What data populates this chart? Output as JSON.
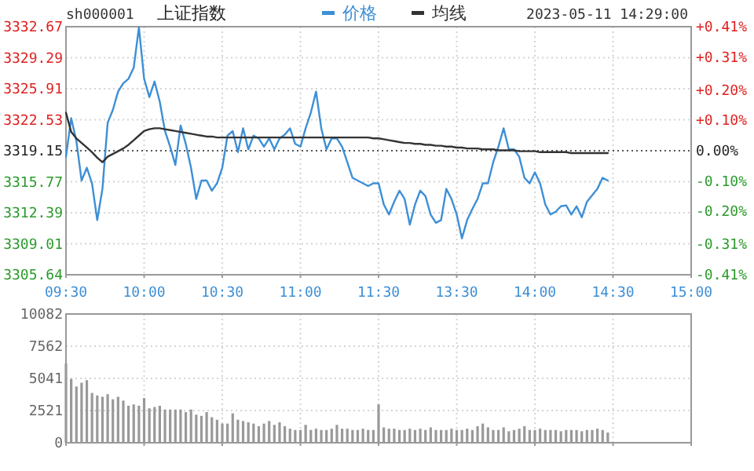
{
  "chart_data": [
    {
      "type": "line",
      "title": "上证指数",
      "annotations": [
        "sh000001",
        "2023-05-11 14:29:00"
      ],
      "legend": "top",
      "grid": true,
      "categories": [
        "09:30",
        null,
        null,
        null,
        null,
        null,
        null,
        null,
        null,
        null,
        null,
        null,
        null,
        null,
        null,
        "10:00",
        null,
        null,
        null,
        null,
        null,
        null,
        null,
        null,
        null,
        null,
        null,
        null,
        null,
        null,
        "10:30",
        null,
        null,
        null,
        null,
        null,
        null,
        null,
        null,
        null,
        null,
        null,
        null,
        null,
        null,
        "11:00",
        null,
        null,
        null,
        null,
        null,
        null,
        null,
        null,
        null,
        null,
        null,
        null,
        null,
        null,
        "11:30",
        null,
        null,
        null,
        null,
        null,
        null,
        null,
        null,
        null,
        null,
        null,
        null,
        null,
        null,
        "13:30",
        null,
        null,
        null,
        null,
        null,
        null,
        null,
        null,
        null,
        null,
        null,
        null,
        null,
        null,
        "14:00",
        null,
        null,
        null,
        null,
        null,
        null,
        null,
        null,
        null,
        null,
        null,
        null,
        null,
        null,
        "14:30",
        null,
        null,
        null,
        null,
        null,
        null,
        null,
        null,
        null,
        null,
        null,
        null,
        null,
        null,
        "15:00"
      ],
      "series": [
        {
          "name": "价格",
          "color": "#3d8fd6",
          "values": [
            3318.5,
            3322.7,
            3320.2,
            3315.9,
            3317.3,
            3315.6,
            3311.6,
            3315.0,
            3322.2,
            3323.6,
            3325.6,
            3326.5,
            3327.0,
            3328.2,
            3332.6,
            3327.0,
            3325.0,
            3326.7,
            3324.5,
            3321.3,
            3319.6,
            3317.6,
            3321.9,
            3319.9,
            3317.3,
            3313.9,
            3315.9,
            3315.9,
            3314.8,
            3315.6,
            3317.3,
            3320.8,
            3321.3,
            3319.0,
            3321.6,
            3319.3,
            3320.8,
            3320.5,
            3319.6,
            3320.5,
            3319.3,
            3320.5,
            3320.9,
            3321.6,
            3319.9,
            3319.6,
            3321.6,
            3323.3,
            3325.6,
            3321.6,
            3319.3,
            3320.5,
            3320.5,
            3319.6,
            3317.9,
            3316.2,
            3315.9,
            3315.6,
            3315.3,
            3315.6,
            3315.6,
            3313.3,
            3312.2,
            3313.6,
            3314.8,
            3313.9,
            3311.1,
            3313.3,
            3314.8,
            3314.2,
            3312.2,
            3311.3,
            3311.6,
            3315.0,
            3313.9,
            3312.2,
            3309.6,
            3311.6,
            3312.8,
            3313.9,
            3315.6,
            3315.6,
            3317.9,
            3319.6,
            3321.6,
            3319.3,
            3319.3,
            3318.5,
            3316.2,
            3315.6,
            3316.8,
            3315.6,
            3313.3,
            3312.2,
            3312.5,
            3313.1,
            3313.2,
            3312.2,
            3313.1,
            3311.9,
            3313.6,
            3314.3,
            3315.0,
            3316.2,
            3315.9,
            null,
            null,
            null,
            null,
            null,
            null,
            null,
            null,
            null,
            null,
            null,
            null,
            null,
            null,
            null,
            null
          ]
        },
        {
          "name": "均线",
          "color": "#333333",
          "values": [
            3323.3,
            3321.2,
            3320.5,
            3320.0,
            3319.5,
            3319.0,
            3318.4,
            3317.9,
            3318.5,
            3318.8,
            3319.1,
            3319.4,
            3319.8,
            3320.3,
            3320.8,
            3321.3,
            3321.5,
            3321.6,
            3321.6,
            3321.5,
            3321.4,
            3321.3,
            3321.2,
            3321.1,
            3321.0,
            3320.9,
            3320.8,
            3320.7,
            3320.7,
            3320.6,
            3320.6,
            3320.6,
            3320.6,
            3320.6,
            3320.6,
            3320.6,
            3320.6,
            3320.6,
            3320.6,
            3320.6,
            3320.6,
            3320.6,
            3320.6,
            3320.6,
            3320.6,
            3320.6,
            3320.6,
            3320.6,
            3320.6,
            3320.6,
            3320.6,
            3320.6,
            3320.6,
            3320.6,
            3320.6,
            3320.6,
            3320.6,
            3320.6,
            3320.6,
            3320.5,
            3320.5,
            3320.4,
            3320.3,
            3320.2,
            3320.1,
            3320.0,
            3320.0,
            3319.9,
            3319.9,
            3319.8,
            3319.8,
            3319.7,
            3319.7,
            3319.6,
            3319.6,
            3319.5,
            3319.5,
            3319.4,
            3319.4,
            3319.4,
            3319.3,
            3319.3,
            3319.3,
            3319.2,
            3319.2,
            3319.2,
            3319.2,
            3319.1,
            3319.1,
            3319.1,
            3319.1,
            3319.0,
            3319.0,
            3319.0,
            3319.0,
            3319.0,
            3319.0,
            3318.9,
            3318.9,
            3318.9,
            3318.9,
            3318.9,
            3318.9,
            3318.9,
            3318.9,
            null,
            null,
            null,
            null,
            null,
            null,
            null,
            null,
            null,
            null,
            null,
            null,
            null,
            null,
            null,
            null
          ]
        }
      ],
      "ylim": [
        3305.64,
        3332.67
      ],
      "yticks": [
        3305.64,
        3309.01,
        3312.39,
        3315.77,
        3319.15,
        3322.53,
        3325.91,
        3329.29,
        3332.67
      ],
      "y2lim": [
        -0.41,
        0.41
      ],
      "y2ticks": [
        {
          "value": -0.41,
          "label": "-0.41%"
        },
        {
          "value": -0.31,
          "label": "-0.31%"
        },
        {
          "value": -0.2,
          "label": "-0.20%"
        },
        {
          "value": -0.1,
          "label": "-0.10%"
        },
        {
          "value": 0,
          "label": "0.00%"
        },
        {
          "value": 0.1,
          "label": "+0.10%"
        },
        {
          "value": 0.2,
          "label": "+0.20%"
        },
        {
          "value": 0.31,
          "label": "+0.31%"
        },
        {
          "value": 0.41,
          "label": "+0.41%"
        }
      ],
      "ref_lines": [
        {
          "axis": "y",
          "value": 3319.15,
          "color": "#555555",
          "line_style": "dotted"
        }
      ]
    },
    {
      "type": "bar",
      "color": "#999999",
      "grid": true,
      "tick_labels": "y",
      "categories": [
        null,
        null,
        null,
        null,
        null,
        null,
        null,
        null,
        null,
        null,
        null,
        null,
        null,
        null,
        null,
        null,
        null,
        null,
        null,
        null,
        null,
        null,
        null,
        null,
        null,
        null,
        null,
        null,
        null,
        null,
        null,
        null,
        null,
        null,
        null,
        null,
        null,
        null,
        null,
        null,
        null,
        null,
        null,
        null,
        null,
        null,
        null,
        null,
        null,
        null,
        null,
        null,
        null,
        null,
        null,
        null,
        null,
        null,
        null,
        null,
        null,
        null,
        null,
        null,
        null,
        null,
        null,
        null,
        null,
        null,
        null,
        null,
        null,
        null,
        null,
        null,
        null,
        null,
        null,
        null,
        null,
        null,
        null,
        null,
        null,
        null,
        null,
        null,
        null,
        null,
        null,
        null,
        null,
        null,
        null,
        null,
        null,
        null,
        null,
        null,
        null,
        null,
        null,
        null,
        null,
        null,
        null,
        null,
        null,
        null,
        null,
        null,
        null,
        null,
        null,
        null,
        null,
        null,
        null,
        null,
        null
      ],
      "values": [
        6200,
        5000,
        4400,
        4700,
        4900,
        3900,
        3700,
        3600,
        3800,
        3400,
        3600,
        3300,
        2900,
        3000,
        2900,
        3500,
        2700,
        2800,
        2900,
        2600,
        2600,
        2600,
        2600,
        2400,
        2600,
        2200,
        2100,
        2400,
        2000,
        1800,
        1500,
        1500,
        2300,
        1800,
        1700,
        1600,
        1500,
        1300,
        1500,
        1700,
        1400,
        1600,
        1300,
        1100,
        1000,
        1000,
        1400,
        1000,
        1100,
        1000,
        1000,
        1100,
        1400,
        1100,
        1100,
        1000,
        1000,
        1100,
        1000,
        1000,
        3000,
        1200,
        1100,
        1100,
        1000,
        1000,
        1100,
        1000,
        1100,
        1000,
        1200,
        1000,
        1000,
        1000,
        1100,
        1000,
        1000,
        1100,
        1000,
        1300,
        1500,
        1200,
        1000,
        1000,
        1200,
        900,
        1000,
        1100,
        1300,
        1000,
        1000,
        1100,
        1000,
        1000,
        1000,
        900,
        1000,
        1000,
        1000,
        900,
        1000,
        1000,
        1100,
        1000,
        800,
        null,
        null,
        null,
        null,
        null,
        null,
        null,
        null,
        null,
        null,
        null,
        null,
        null,
        null,
        null,
        null
      ],
      "ylim": [
        0,
        10082
      ],
      "yticks": [
        0,
        2521,
        5041,
        7562,
        10082
      ]
    }
  ]
}
